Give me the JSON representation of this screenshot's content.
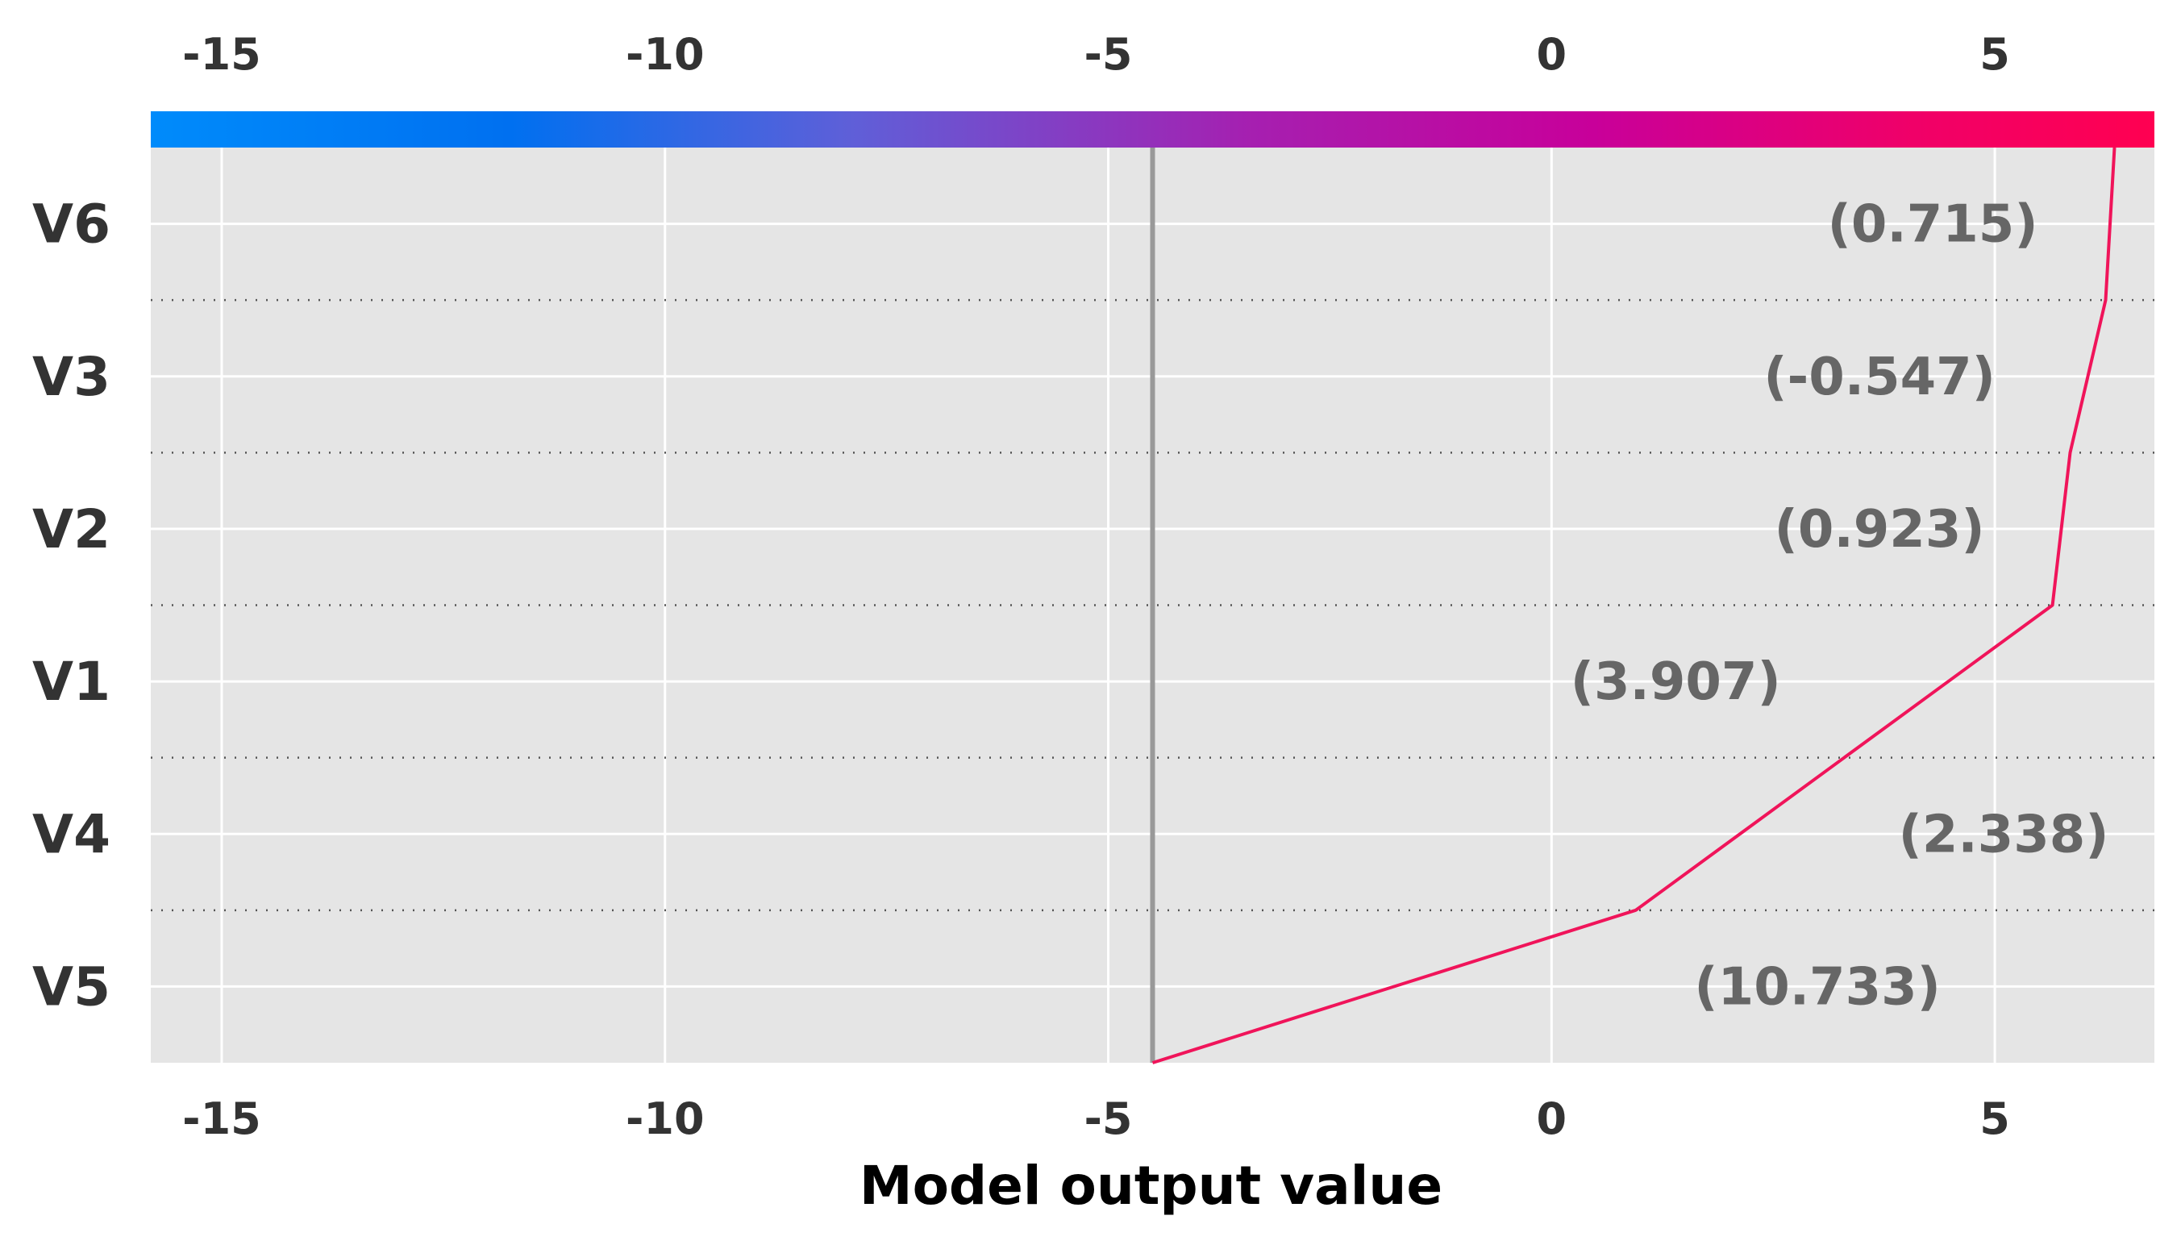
{
  "chart_data": {
    "type": "line",
    "xlabel": "Model output value",
    "xlim": [
      -15.8,
      6.8
    ],
    "x_ticks": [
      -15,
      -10,
      -5,
      0,
      5
    ],
    "tick_labels": [
      "-15",
      "-10",
      "-5",
      "0",
      "5"
    ],
    "base_value": -4.5,
    "features": [
      {
        "name": "V5",
        "label": "(10.733)",
        "cumulative": 0.95
      },
      {
        "name": "V4",
        "label": "(2.338)",
        "cumulative": 5.65
      },
      {
        "name": "V1",
        "label": "(3.907)",
        "cumulative": 5.65
      },
      {
        "name": "V2",
        "label": "(0.923)",
        "cumulative": 5.85
      },
      {
        "name": "V3",
        "label": "(-0.547)",
        "cumulative": 6.25
      },
      {
        "name": "V6",
        "label": "(0.715)",
        "cumulative": 6.35
      }
    ],
    "line_points": [
      {
        "x": -4.5,
        "y": 0
      },
      {
        "x": 0.95,
        "y": 1
      },
      {
        "x": 5.65,
        "y": 3
      },
      {
        "x": 5.85,
        "y": 4
      },
      {
        "x": 6.25,
        "y": 5
      },
      {
        "x": 6.35,
        "y": 6
      }
    ],
    "label_x": [
      3.0,
      5.1,
      1.4,
      3.7,
      3.7,
      4.3
    ],
    "grid": true,
    "colorbar": {
      "from": "#008bfb",
      "to": "#ff0051"
    },
    "colors": {
      "background": "#e5e5e5",
      "grid": "#ffffff",
      "line": "#f0145a",
      "base_line": "#999999",
      "separator": "#555555"
    }
  }
}
